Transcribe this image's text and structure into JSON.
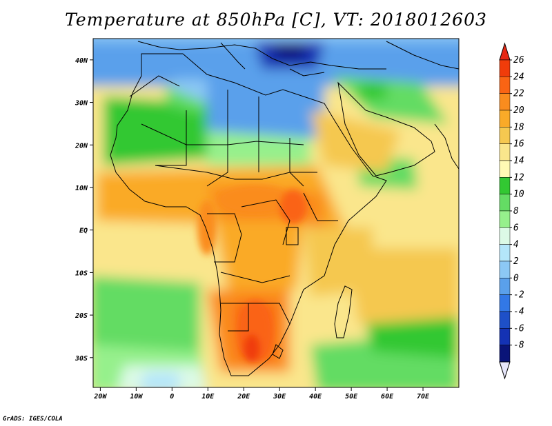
{
  "title": "Temperature at 850hPa [C], VT: 2018012603",
  "credit": "GrADS: IGES/COLA",
  "map": {
    "lon_range": [
      -22,
      80
    ],
    "lat_range": [
      -37,
      45
    ],
    "lon_ticks": [
      {
        "value": -20,
        "label": "20W"
      },
      {
        "value": -10,
        "label": "10W"
      },
      {
        "value": 0,
        "label": "0"
      },
      {
        "value": 10,
        "label": "10E"
      },
      {
        "value": 20,
        "label": "20E"
      },
      {
        "value": 30,
        "label": "30E"
      },
      {
        "value": 40,
        "label": "40E"
      },
      {
        "value": 50,
        "label": "50E"
      },
      {
        "value": 60,
        "label": "60E"
      },
      {
        "value": 70,
        "label": "70E"
      }
    ],
    "lat_ticks": [
      {
        "value": 40,
        "label": "40N"
      },
      {
        "value": 30,
        "label": "30N"
      },
      {
        "value": 20,
        "label": "20N"
      },
      {
        "value": 10,
        "label": "10N"
      },
      {
        "value": 0,
        "label": "EQ"
      },
      {
        "value": -10,
        "label": "10S"
      },
      {
        "value": -20,
        "label": "20S"
      },
      {
        "value": -30,
        "label": "30S"
      }
    ]
  },
  "colorbar": {
    "labels": [
      "26",
      "24",
      "22",
      "20",
      "18",
      "16",
      "14",
      "12",
      "10",
      "8",
      "6",
      "4",
      "2",
      "0",
      "-2",
      "-4",
      "-6",
      "-8"
    ],
    "colors": [
      "#f03c0a",
      "#fa6414",
      "#fa8c1e",
      "#faaa28",
      "#f5c850",
      "#fae68c",
      "#fffab4",
      "#32c832",
      "#64dc64",
      "#96f08c",
      "#dcfae6",
      "#b4e6fa",
      "#8cc8f5",
      "#5aa0eb",
      "#3278e6",
      "#1e50c8",
      "#1432b4",
      "#0a1478"
    ],
    "top_arrow_color": "#e62814",
    "bottom_arrow_color": "#e6e6fa"
  }
}
